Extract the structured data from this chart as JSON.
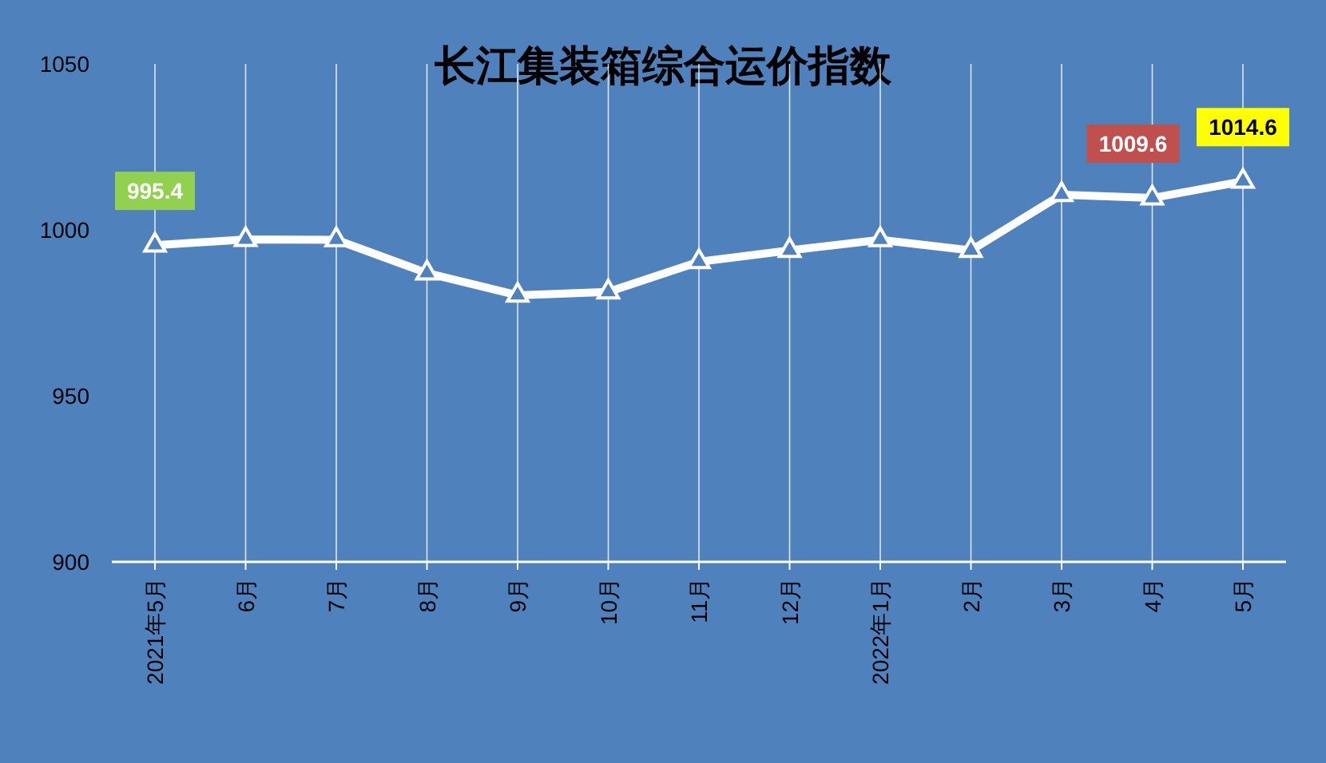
{
  "chart_data": {
    "type": "line",
    "title": "长江集装箱综合运价指数",
    "categories": [
      "2021年5月",
      "6月",
      "7月",
      "8月",
      "9月",
      "10月",
      "11月",
      "12月",
      "2022年1月",
      "2月",
      "3月",
      "4月",
      "5月"
    ],
    "series": [
      {
        "color": "#ffffff",
        "values": [
          995.4,
          997.1,
          997,
          987,
          980.3,
          981.3,
          990.4,
          993.8,
          997,
          993.8,
          1010.6,
          1009.6,
          1014.6
        ],
        "value_labels": [
          "995.4",
          null,
          null,
          null,
          null,
          null,
          null,
          null,
          null,
          null,
          null,
          "1009.6",
          "1014.6"
        ]
      }
    ],
    "ylim": [
      900,
      1050
    ],
    "yticks": [
      900,
      950,
      1000,
      1050
    ],
    "marker": "triangle",
    "line_style": "solid",
    "grid": "x"
  }
}
